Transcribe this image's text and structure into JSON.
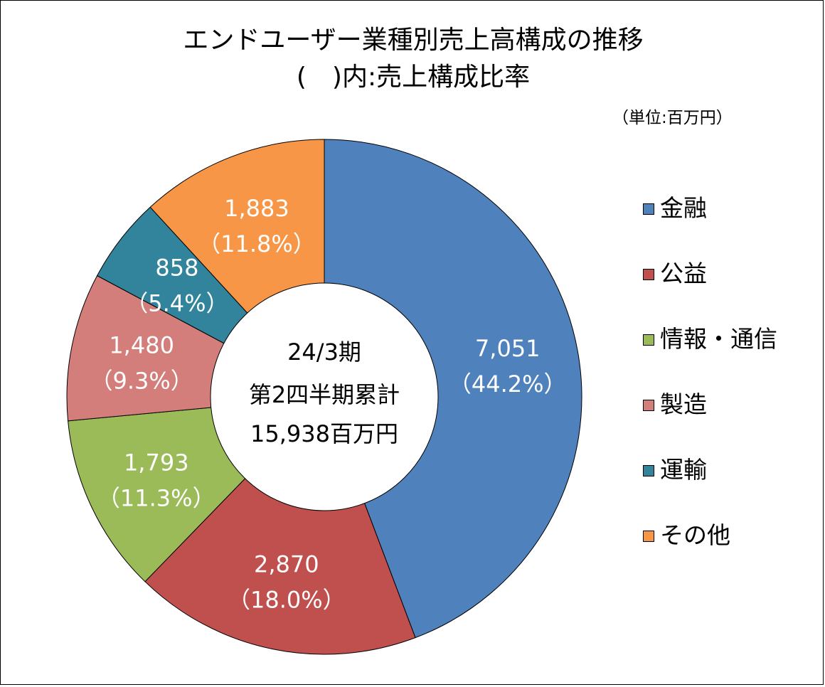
{
  "chart_data": {
    "type": "pie",
    "style": "donut",
    "title": "エンドユーザー業種別売上高構成の推移",
    "subtitle": "(　)内:売上構成比率",
    "unit_note": "（単位:百万円）",
    "center_text": [
      "24/3期",
      "第2四半期累計",
      "15,938百万円"
    ],
    "slices": [
      {
        "name": "金融",
        "value": 7051,
        "value_label": "7,051",
        "percent_label": "（44.2%）",
        "color": "#4F81BD"
      },
      {
        "name": "公益",
        "value": 2870,
        "value_label": "2,870",
        "percent_label": "（18.0%）",
        "color": "#C0504D"
      },
      {
        "name": "情報・通信",
        "value": 1793,
        "value_label": "1,793",
        "percent_label": "（11.3%）",
        "color": "#9BBB59"
      },
      {
        "name": "製造",
        "value": 1480,
        "value_label": "1,480",
        "percent_label": "（9.3%）",
        "color": "#D47E7C"
      },
      {
        "name": "運輸",
        "value": 858,
        "value_label": "858",
        "percent_label": "（5.4%）",
        "color": "#31849B"
      },
      {
        "name": "その他",
        "value": 1883,
        "value_label": "1,883",
        "percent_label": "（11.8%）",
        "color": "#F79646"
      }
    ],
    "legend_position": "right"
  }
}
